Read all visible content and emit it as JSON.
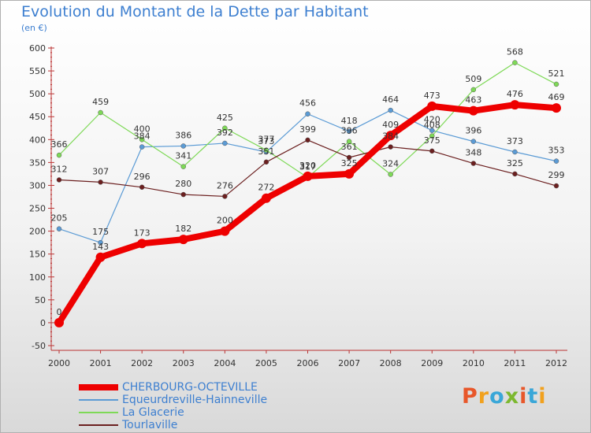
{
  "page": {
    "title": "Evolution du Montant de la Dette par Habitant",
    "subtitle": "(en €)"
  },
  "logo": {
    "text": "Proxiti",
    "colors": [
      "#e8572a",
      "#f1a11e",
      "#3aa7d8",
      "#7cb82f",
      "#e8572a",
      "#3aa7d8",
      "#f1a11e"
    ]
  },
  "chart_data": {
    "type": "line",
    "title": "Evolution du Montant de la Dette par Habitant",
    "subtitle": "(en €)",
    "xlabel": "",
    "ylabel": "",
    "x": [
      "2000",
      "2001",
      "2002",
      "2003",
      "2004",
      "2005",
      "2006",
      "2007",
      "2008",
      "2009",
      "2010",
      "2011",
      "2012"
    ],
    "ylim": [
      -50,
      600
    ],
    "yticks": [
      -50,
      0,
      50,
      100,
      150,
      200,
      250,
      300,
      350,
      400,
      450,
      500,
      550,
      600
    ],
    "grid": false,
    "legend": "bottom-left",
    "series": [
      {
        "name": "CHERBOURG-OCTEVILLE",
        "color": "#ee0000",
        "values": [
          0,
          143,
          173,
          182,
          200,
          272,
          320,
          325,
          409,
          473,
          463,
          476,
          469
        ]
      },
      {
        "name": "Equeurdreville-Hainneville",
        "color": "#5b9bd5",
        "values": [
          205,
          175,
          384,
          386,
          392,
          373,
          456,
          418,
          464,
          420,
          396,
          373,
          353
        ]
      },
      {
        "name": "La Glacerie",
        "color": "#7ed957",
        "values": [
          366,
          459,
          400,
          341,
          425,
          377,
          317,
          396,
          324,
          408,
          509,
          568,
          521
        ]
      },
      {
        "name": "Tourlaville",
        "color": "#6b1f1f",
        "values": [
          312,
          307,
          296,
          280,
          276,
          351,
          399,
          361,
          384,
          375,
          348,
          325,
          299
        ]
      }
    ]
  }
}
